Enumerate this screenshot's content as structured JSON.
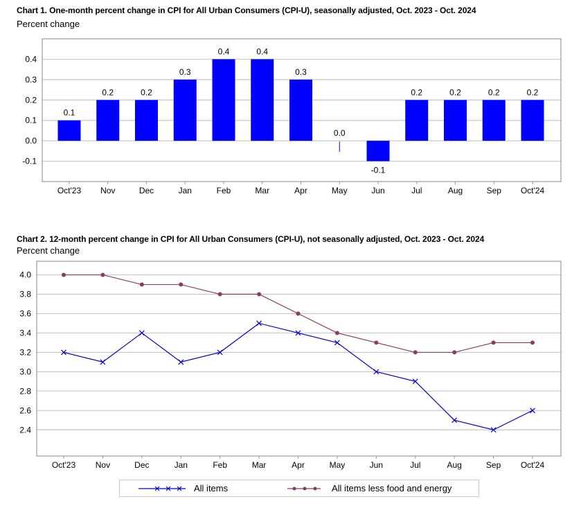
{
  "chart_data": [
    {
      "type": "bar",
      "title": "Chart 1. One-month percent change in CPI for All Urban Consumers (CPI-U), seasonally adjusted, Oct. 2023 - Oct. 2024",
      "ylabel": "Percent change",
      "xlabel": "",
      "categories": [
        "Oct'23",
        "Nov",
        "Dec",
        "Jan",
        "Feb",
        "Mar",
        "Apr",
        "May",
        "Jun",
        "Jul",
        "Aug",
        "Sep",
        "Oct'24"
      ],
      "values": [
        0.1,
        0.2,
        0.2,
        0.3,
        0.4,
        0.4,
        0.3,
        0.0,
        -0.1,
        0.2,
        0.2,
        0.2,
        0.2
      ],
      "data_labels": [
        "0.1",
        "0.2",
        "0.2",
        "0.3",
        "0.4",
        "0.4",
        "0.3",
        "0.0",
        "-0.1",
        "0.2",
        "0.2",
        "0.2",
        "0.2"
      ],
      "yticks": [
        "-0.1",
        "0.0",
        "0.1",
        "0.2",
        "0.3",
        "0.4"
      ],
      "ylim": [
        -0.2,
        0.5
      ],
      "grid": true,
      "bar_color": "#0000ff"
    },
    {
      "type": "line",
      "title": "Chart 2. 12-month percent change in CPI for All Urban Consumers (CPI-U), not seasonally adjusted, Oct. 2023 - Oct. 2024",
      "ylabel": "Percent change",
      "xlabel": "",
      "categories": [
        "Oct'23",
        "Nov",
        "Dec",
        "Jan",
        "Feb",
        "Mar",
        "Apr",
        "May",
        "Jun",
        "Jul",
        "Aug",
        "Sep",
        "Oct'24"
      ],
      "yticks": [
        "2.4",
        "2.6",
        "2.8",
        "3.0",
        "3.2",
        "3.4",
        "3.6",
        "3.8",
        "4.0"
      ],
      "ylim": [
        2.13,
        4.14
      ],
      "grid": true,
      "legend_position": "bottom",
      "series": [
        {
          "name": "All items",
          "color": "#0000cc",
          "marker": "x",
          "values": [
            3.2,
            3.1,
            3.4,
            3.1,
            3.2,
            3.5,
            3.4,
            3.3,
            3.0,
            2.9,
            2.5,
            2.4,
            2.6
          ]
        },
        {
          "name": "All items less food and energy",
          "color": "#8b3a62",
          "marker": "circle",
          "values": [
            4.0,
            4.0,
            3.9,
            3.9,
            3.8,
            3.8,
            3.6,
            3.4,
            3.3,
            3.2,
            3.2,
            3.3,
            3.3
          ]
        }
      ]
    }
  ]
}
